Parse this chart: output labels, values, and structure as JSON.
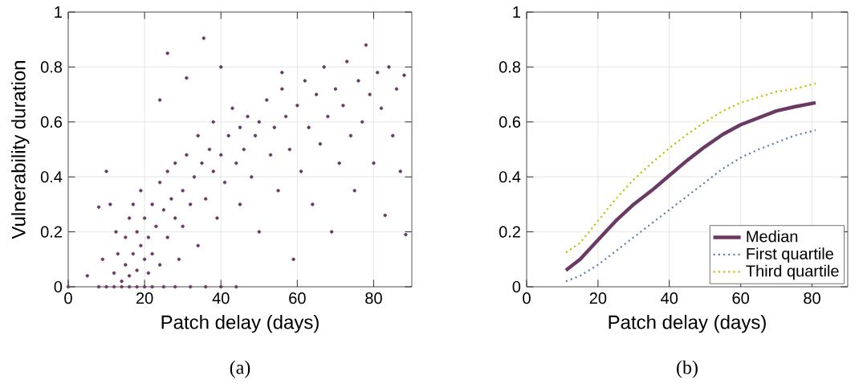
{
  "chart_data": [
    {
      "type": "scatter",
      "xlabel": "Patch delay (days)",
      "ylabel": "Vulnerability duration",
      "annotations": [
        "(a)"
      ],
      "color": "#6b3a64",
      "grid": true,
      "xlim": [
        0,
        90
      ],
      "ylim": [
        0,
        1
      ],
      "xticks": [
        0,
        20,
        40,
        60,
        80
      ],
      "yticks": [
        0,
        0.2,
        0.4,
        0.6,
        0.8,
        1
      ],
      "x": [
        0,
        8,
        10,
        12,
        14,
        16,
        18,
        20,
        22,
        25,
        28,
        32,
        36,
        40,
        44,
        12,
        13,
        14,
        15,
        15,
        16,
        16,
        17,
        17,
        18,
        18,
        19,
        19,
        20,
        20,
        21,
        21,
        22,
        22,
        23,
        24,
        24,
        25,
        26,
        26,
        27,
        28,
        28,
        29,
        30,
        30,
        31,
        32,
        33,
        34,
        34,
        35,
        36,
        37,
        38,
        38,
        39,
        40,
        41,
        42,
        43,
        44,
        45,
        45,
        46,
        47,
        48,
        49,
        50,
        50,
        52,
        53,
        54,
        55,
        56,
        57,
        58,
        59,
        60,
        61,
        62,
        63,
        64,
        65,
        66,
        67,
        68,
        69,
        70,
        71,
        72,
        73,
        74,
        75,
        76,
        77,
        78,
        79,
        80,
        81,
        82,
        83,
        84,
        85,
        86,
        87,
        88,
        88.4,
        35.5,
        26,
        24,
        10,
        8,
        5,
        12.5,
        9,
        11,
        40,
        31,
        56
      ],
      "values": [
        0,
        0,
        0,
        0,
        0,
        0,
        0,
        0,
        0,
        0,
        0,
        0,
        0,
        0,
        0,
        0.05,
        0.12,
        0.02,
        0.08,
        0.18,
        0.04,
        0.25,
        0.12,
        0.3,
        0.06,
        0.2,
        0.15,
        0.35,
        0.1,
        0.25,
        0.05,
        0.18,
        0.3,
        0.12,
        0.22,
        0.38,
        0.08,
        0.28,
        0.18,
        0.42,
        0.32,
        0.25,
        0.45,
        0.1,
        0.35,
        0.22,
        0.48,
        0.3,
        0.4,
        0.55,
        0.15,
        0.45,
        0.32,
        0.5,
        0.42,
        0.6,
        0.25,
        0.48,
        0.38,
        0.55,
        0.65,
        0.45,
        0.3,
        0.58,
        0.5,
        0.62,
        0.4,
        0.55,
        0.6,
        0.2,
        0.68,
        0.48,
        0.58,
        0.35,
        0.72,
        0.62,
        0.5,
        0.1,
        0.66,
        0.42,
        0.75,
        0.58,
        0.3,
        0.7,
        0.52,
        0.8,
        0.62,
        0.2,
        0.72,
        0.45,
        0.66,
        0.82,
        0.55,
        0.35,
        0.75,
        0.6,
        0.88,
        0.7,
        0.45,
        0.78,
        0.65,
        0.26,
        0.8,
        0.55,
        0.72,
        0.42,
        0.77,
        0.19,
        0.905,
        0.85,
        0.68,
        0.42,
        0.29,
        0.04,
        0.2,
        0.1,
        0.3,
        0.8,
        0.76,
        0.78
      ]
    },
    {
      "type": "line",
      "xlabel": "Patch delay (days)",
      "annotations": [
        "(b)"
      ],
      "grid": true,
      "legend": "bottom right",
      "xlim": [
        0,
        90
      ],
      "ylim": [
        0,
        1
      ],
      "xticks": [
        0,
        20,
        40,
        60,
        80
      ],
      "yticks": [
        0,
        0.2,
        0.4,
        0.6,
        0.8,
        1
      ],
      "x": [
        11,
        15,
        20,
        25,
        30,
        35,
        40,
        45,
        50,
        55,
        60,
        65,
        70,
        75,
        81
      ],
      "series": [
        {
          "name": "Median",
          "color": "#6b3a64",
          "line_style": "solid",
          "values": [
            0.06,
            0.1,
            0.17,
            0.24,
            0.3,
            0.35,
            0.405,
            0.46,
            0.51,
            0.555,
            0.59,
            0.615,
            0.64,
            0.655,
            0.67
          ]
        },
        {
          "name": "First quartile",
          "color": "#6683b0",
          "line_style": "dotted",
          "values": [
            0.02,
            0.04,
            0.08,
            0.13,
            0.18,
            0.23,
            0.28,
            0.33,
            0.38,
            0.43,
            0.47,
            0.5,
            0.525,
            0.55,
            0.57
          ]
        },
        {
          "name": "Third quartile",
          "color": "#c2c200",
          "line_style": "dotted",
          "values": [
            0.125,
            0.16,
            0.24,
            0.32,
            0.39,
            0.45,
            0.505,
            0.555,
            0.6,
            0.64,
            0.67,
            0.69,
            0.71,
            0.72,
            0.74
          ]
        }
      ]
    }
  ]
}
